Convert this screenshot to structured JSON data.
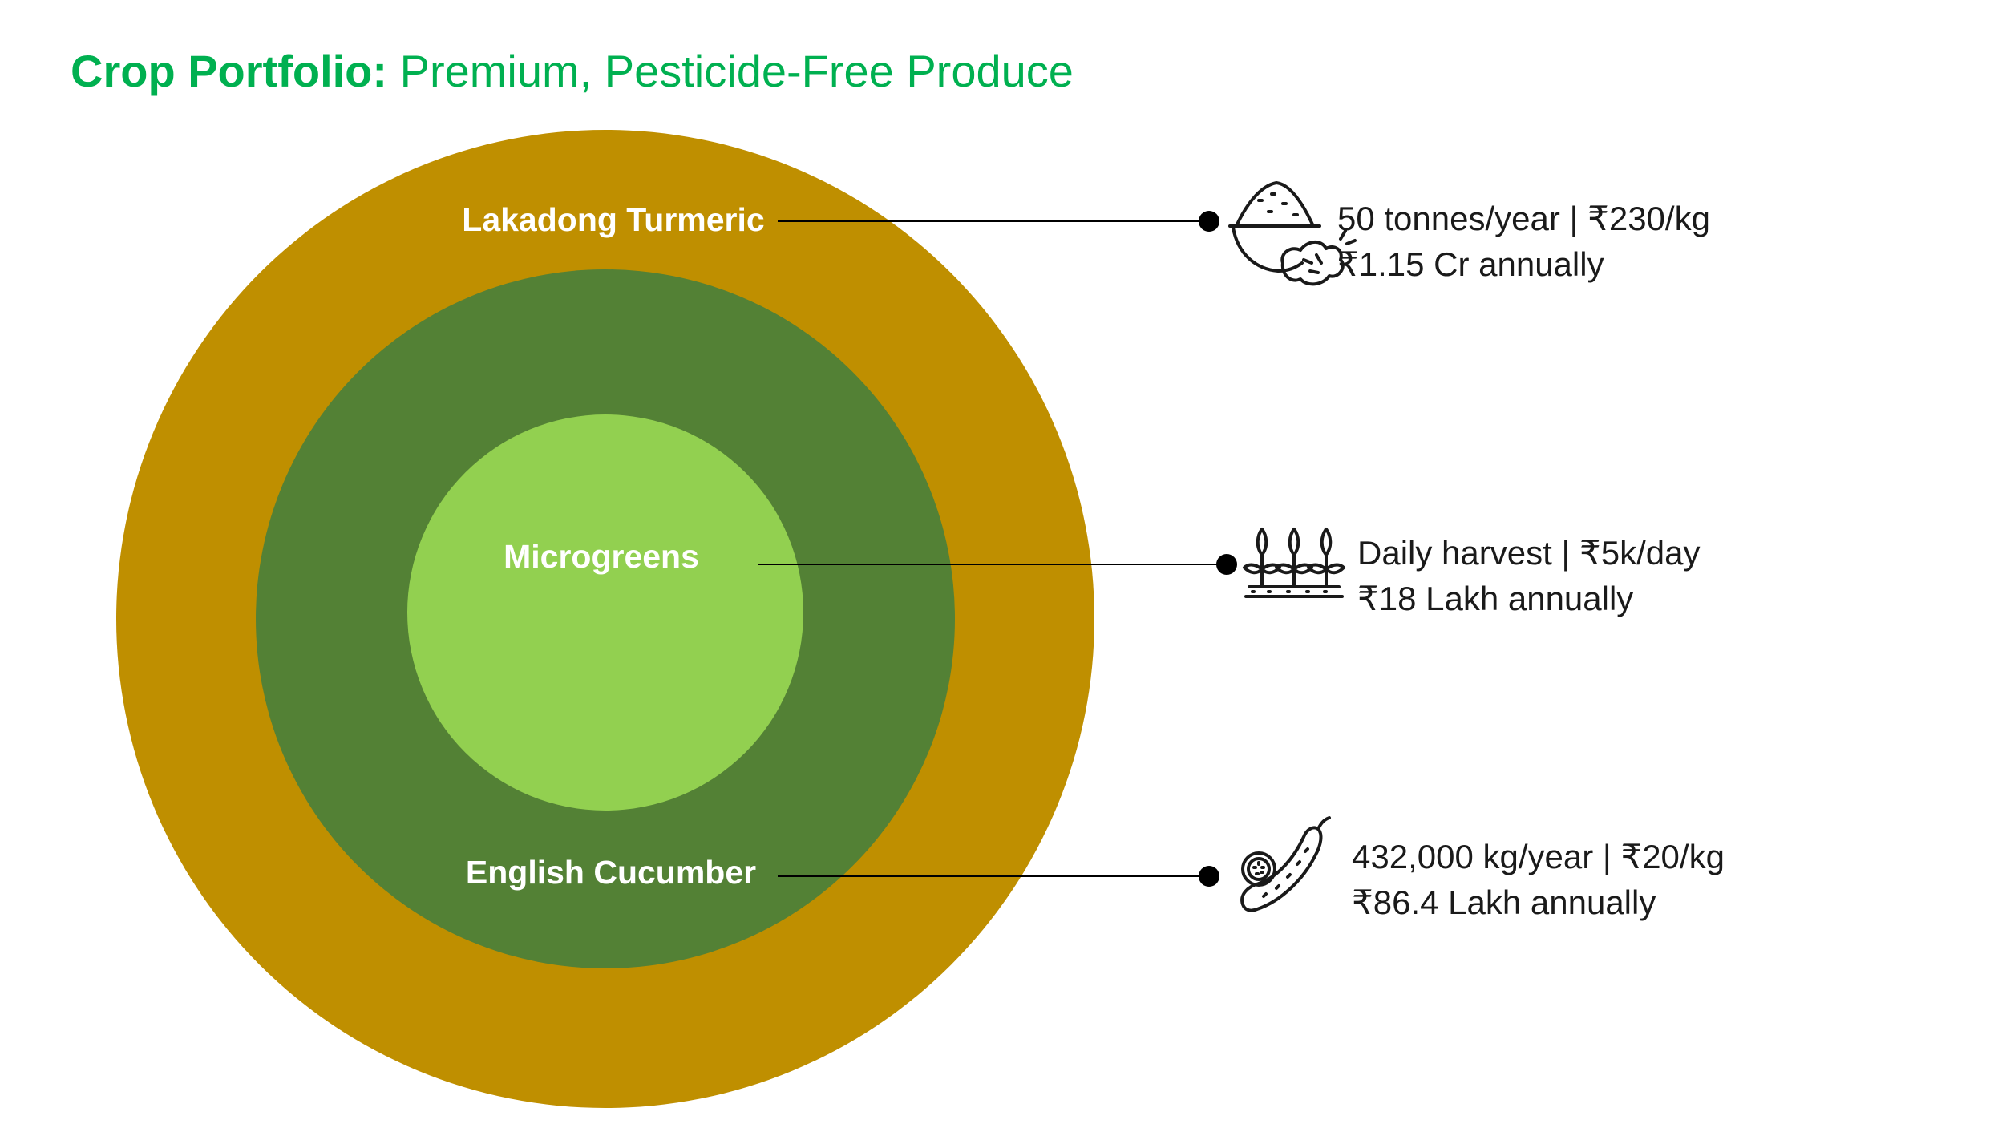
{
  "title": {
    "bold": "Crop Portfolio:",
    "rest": "Premium, Pesticide-Free Produce"
  },
  "colors": {
    "title": "#00b050",
    "outer_ring": "#bf8f00",
    "middle_ring": "#538135",
    "inner_circle": "#92d050",
    "leader_line": "#000000"
  },
  "crops": [
    {
      "name": "Lakadong Turmeric",
      "icon": "turmeric-bowl-icon",
      "line1": "50 tonnes/year | ₹230/kg",
      "line2": "₹1.15 Cr annually"
    },
    {
      "name": "Microgreens",
      "icon": "sprouts-icon",
      "line1": "Daily harvest | ₹5k/day",
      "line2": "₹18 Lakh annually"
    },
    {
      "name": "English Cucumber",
      "icon": "cucumber-icon",
      "line1": "432,000 kg/year | ₹20/kg",
      "line2": "₹86.4 Lakh annually"
    }
  ]
}
